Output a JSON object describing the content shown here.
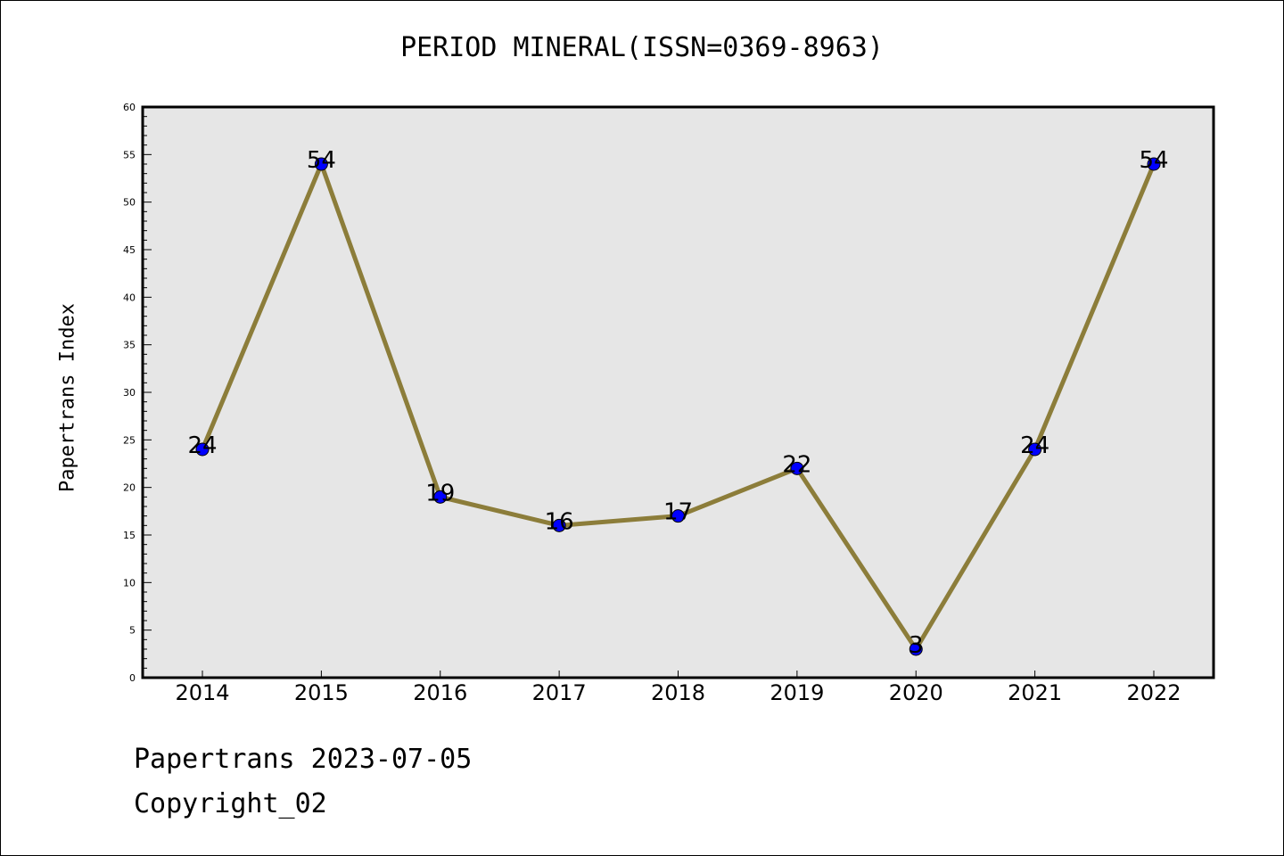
{
  "chart_data": {
    "type": "line",
    "title": "PERIOD MINERAL(ISSN=0369-8963)",
    "xlabel": "",
    "ylabel": "Papertrans Index",
    "categories": [
      "2014",
      "2015",
      "2016",
      "2017",
      "2018",
      "2019",
      "2020",
      "2021",
      "2022"
    ],
    "values": [
      24,
      54,
      19,
      16,
      17,
      22,
      3,
      24,
      54
    ],
    "ylim": [
      0,
      60
    ],
    "yticks": [
      0,
      5,
      10,
      15,
      20,
      25,
      30,
      35,
      40,
      45,
      50,
      55,
      60
    ],
    "grid": false,
    "line_color": "#8c7d3a",
    "marker_color": "#0000ff",
    "plot_background": "#e6e6e6"
  },
  "footer": {
    "line1": "Papertrans 2023-07-05",
    "line2": "Copyright_02"
  }
}
